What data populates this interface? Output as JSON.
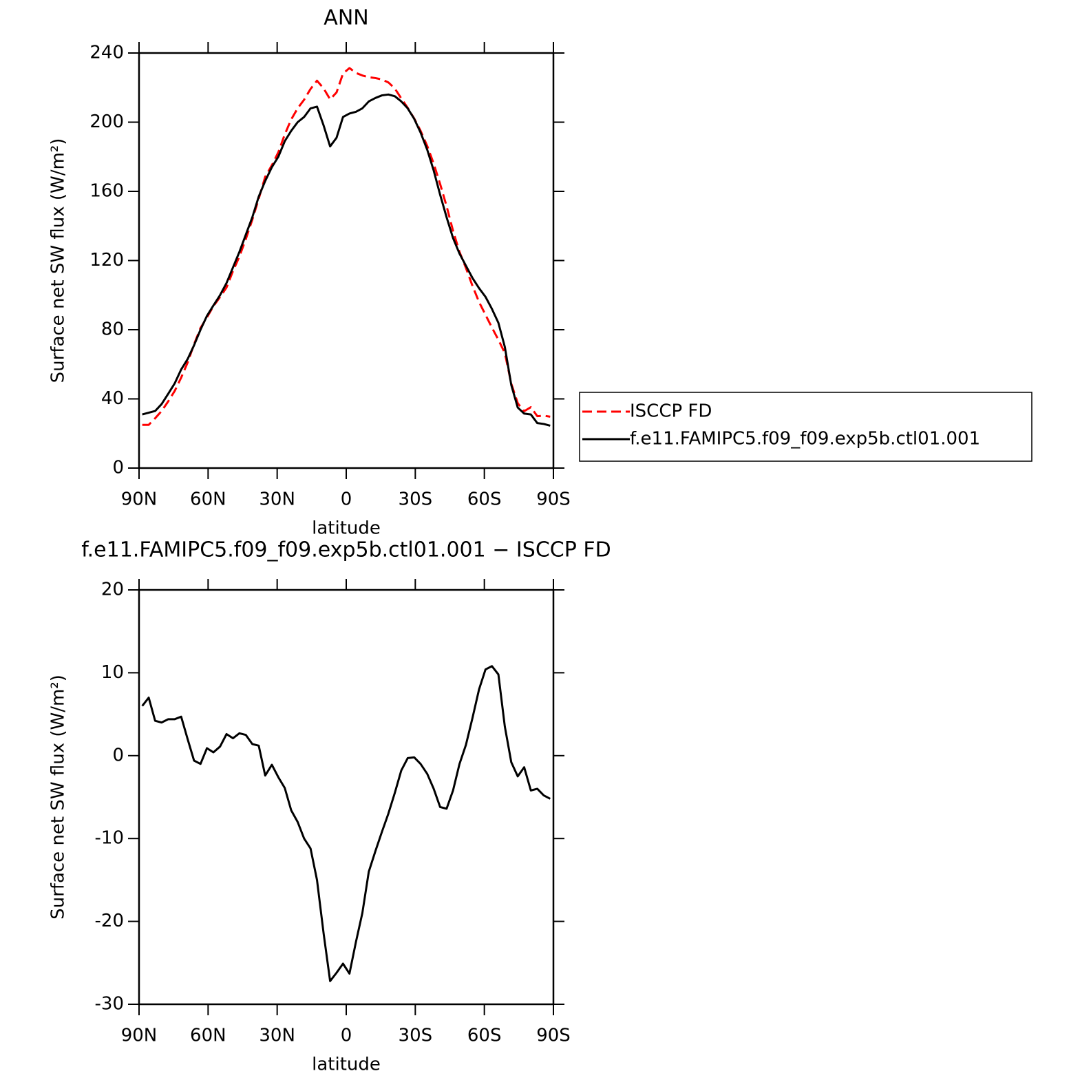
{
  "chart_data": [
    {
      "type": "line",
      "title": "ANN",
      "x_label": "latitude",
      "y_label": "Surface net SW flux (W/m²)",
      "x": [
        88.6,
        85.8,
        83.0,
        80.2,
        77.3,
        74.5,
        71.7,
        68.9,
        66.1,
        63.3,
        60.5,
        57.7,
        54.8,
        52.0,
        49.2,
        46.4,
        43.6,
        40.8,
        38.0,
        35.2,
        32.3,
        29.5,
        26.7,
        23.9,
        21.1,
        18.3,
        15.5,
        12.7,
        9.8,
        7.0,
        4.2,
        1.4,
        -1.4,
        -4.2,
        -7.0,
        -9.8,
        -12.7,
        -15.5,
        -18.3,
        -21.1,
        -23.9,
        -26.7,
        -29.5,
        -32.3,
        -35.2,
        -38.0,
        -40.8,
        -43.6,
        -46.4,
        -49.2,
        -52.0,
        -54.8,
        -57.7,
        -60.5,
        -63.3,
        -66.1,
        -68.9,
        -71.7,
        -74.5,
        -77.3,
        -80.2,
        -83.0,
        -85.8,
        -88.6
      ],
      "series": [
        {
          "name": "ISCCP FD",
          "color": "#ff0000",
          "dashed": true,
          "values": [
            25,
            25,
            28.8,
            33,
            38.6,
            44.6,
            52.3,
            61,
            71.6,
            81,
            87.1,
            93.6,
            98.9,
            104.4,
            113.9,
            122.3,
            132.5,
            143.6,
            155.8,
            168.4,
            175.1,
            182.6,
            192.9,
            201.6,
            208,
            213,
            219.2,
            224,
            219.5,
            213.2,
            217.2,
            228.1,
            231.3,
            228.5,
            227,
            226,
            225.5,
            224.7,
            223,
            219.5,
            213.8,
            208.3,
            202.2,
            195,
            186.2,
            176,
            164.2,
            151.4,
            137.2,
            125,
            115.7,
            105.5,
            96,
            88.6,
            81.2,
            74.2,
            66.5,
            48.8,
            37.5,
            32.9,
            35.2,
            30,
            30.3,
            29.7
          ]
        },
        {
          "name": "f.e11.FAMIPC5.f09_f09.exp5b.ctl01.001",
          "color": "#000000",
          "dashed": false,
          "values": [
            31,
            32,
            33,
            37,
            43,
            49,
            57,
            63,
            71,
            80,
            88,
            94,
            100,
            107,
            116,
            125,
            135,
            145,
            157,
            166,
            174,
            180,
            189,
            195,
            200,
            203,
            208,
            209,
            198,
            186,
            191,
            203,
            205,
            206,
            208,
            212,
            214,
            215.5,
            216,
            215,
            212,
            208,
            202,
            194,
            184,
            172,
            158,
            145,
            133,
            124,
            117,
            110,
            104,
            99,
            92,
            84,
            70,
            48,
            35,
            31.5,
            31,
            26,
            25.5,
            24.5
          ]
        }
      ],
      "xlim": [
        90,
        -90
      ],
      "xticks": [
        {
          "value": 90,
          "label": "90N"
        },
        {
          "value": 60,
          "label": "60N"
        },
        {
          "value": 30,
          "label": "30N"
        },
        0,
        {
          "value": -30,
          "label": "30S"
        },
        {
          "value": -60,
          "label": "60S"
        },
        {
          "value": -90,
          "label": "90S"
        }
      ],
      "ylim": [
        0,
        240
      ],
      "yticks": [
        0,
        40,
        80,
        120,
        160,
        200,
        240
      ],
      "legend": "right"
    },
    {
      "type": "line",
      "title": "f.e11.FAMIPC5.f09_f09.exp5b.ctl01.001 − ISCCP FD",
      "x_label": "latitude",
      "y_label": "Surface net SW flux (W/m²)",
      "x": [
        88.6,
        85.8,
        83.0,
        80.2,
        77.3,
        74.5,
        71.7,
        68.9,
        66.1,
        63.3,
        60.5,
        57.7,
        54.8,
        52.0,
        49.2,
        46.4,
        43.6,
        40.8,
        38.0,
        35.2,
        32.3,
        29.5,
        26.7,
        23.9,
        21.1,
        18.3,
        15.5,
        12.7,
        9.8,
        7.0,
        4.2,
        1.4,
        -1.4,
        -4.2,
        -7.0,
        -9.8,
        -12.7,
        -15.5,
        -18.3,
        -21.1,
        -23.9,
        -26.7,
        -29.5,
        -32.3,
        -35.2,
        -38.0,
        -40.8,
        -43.6,
        -46.4,
        -49.2,
        -52.0,
        -54.8,
        -57.7,
        -60.5,
        -63.3,
        -66.1,
        -68.9,
        -71.7,
        -74.5,
        -77.3,
        -80.2,
        -83.0,
        -85.8,
        -88.6
      ],
      "color": "#000000",
      "values": [
        6.0,
        7.0,
        4.2,
        4.0,
        4.4,
        4.4,
        4.7,
        2.0,
        -0.6,
        -1.0,
        0.9,
        0.4,
        1.1,
        2.6,
        2.1,
        2.7,
        2.5,
        1.4,
        1.2,
        -2.4,
        -1.1,
        -2.6,
        -3.9,
        -6.6,
        -8.0,
        -10.0,
        -11.2,
        -15.0,
        -21.5,
        -27.2,
        -26.2,
        -25.1,
        -26.3,
        -22.5,
        -19.0,
        -14.0,
        -11.5,
        -9.2,
        -7.0,
        -4.5,
        -1.8,
        -0.3,
        -0.2,
        -1.0,
        -2.2,
        -4.0,
        -6.2,
        -6.4,
        -4.2,
        -1.0,
        1.3,
        4.5,
        8.0,
        10.4,
        10.8,
        9.8,
        3.5,
        -0.8,
        -2.5,
        -1.4,
        -4.2,
        -4.0,
        -4.8,
        -5.2
      ],
      "xlim": [
        90,
        -90
      ],
      "xticks": [
        {
          "value": 90,
          "label": "90N"
        },
        {
          "value": 60,
          "label": "60N"
        },
        {
          "value": 30,
          "label": "30N"
        },
        0,
        {
          "value": -30,
          "label": "30S"
        },
        {
          "value": -60,
          "label": "60S"
        },
        {
          "value": -90,
          "label": "90S"
        }
      ],
      "ylim": [
        -30,
        20
      ],
      "yticks": [
        -30,
        -20,
        -10,
        0,
        10,
        20
      ]
    }
  ]
}
